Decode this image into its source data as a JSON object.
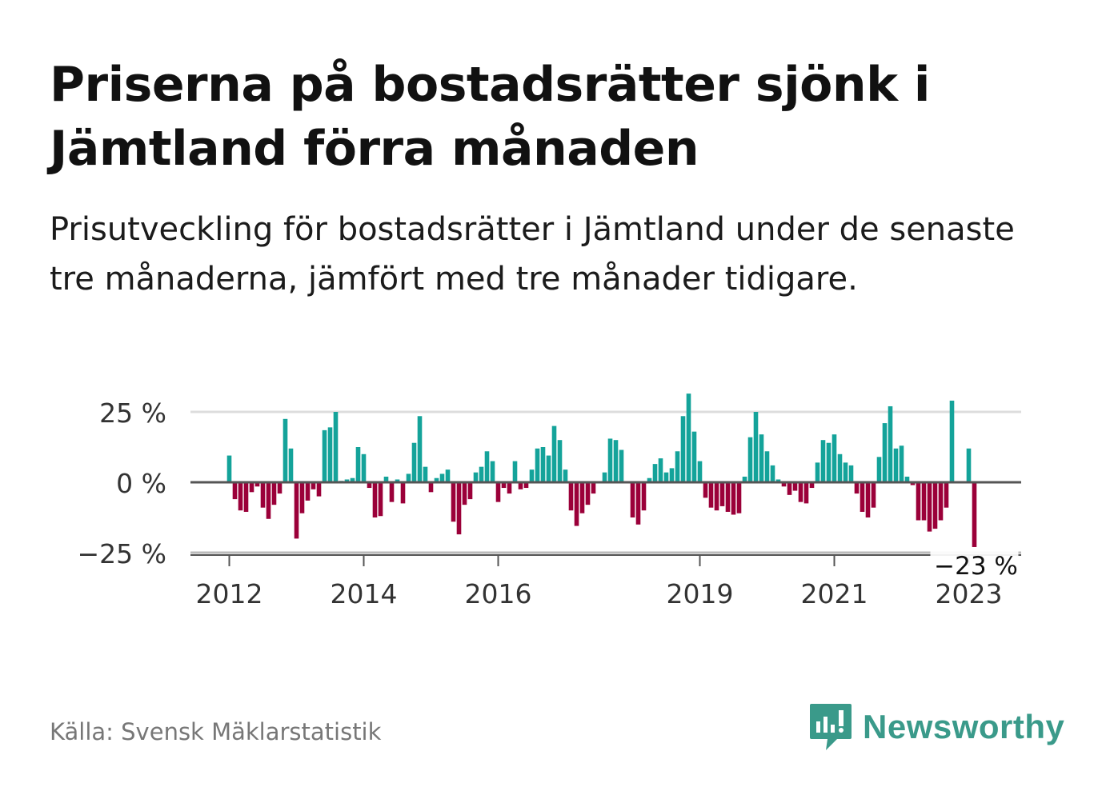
{
  "title": "Priserna på bostadsrätter sjönk i Jämtland förra månaden",
  "subtitle": "Prisutveckling för bostadsrätter i Jämtland under de senaste tre månaderna, jämfört med tre månader tidigare.",
  "source": "Källa: Svensk Mäklarstatistik",
  "logo_text": "Newsworthy",
  "colors": {
    "positive": "#14a39a",
    "negative": "#9b0039",
    "axis": "#555555",
    "grid": "#dddddd",
    "brand": "#3a9a8a"
  },
  "chart_data": {
    "type": "bar",
    "title": "",
    "xlabel": "",
    "ylabel": "",
    "ylim": [
      -25,
      33
    ],
    "y_ticks": [
      {
        "value": 25,
        "label": "25 %"
      },
      {
        "value": 0,
        "label": "0 %"
      },
      {
        "value": -25,
        "label": "−25 %"
      }
    ],
    "x_ticks": [
      {
        "date": "2012-01",
        "label": "2012"
      },
      {
        "date": "2014-01",
        "label": "2014"
      },
      {
        "date": "2016-01",
        "label": "2016"
      },
      {
        "date": "2019-01",
        "label": "2019"
      },
      {
        "date": "2021-01",
        "label": "2021"
      },
      {
        "date": "2023-01",
        "label": "2023"
      }
    ],
    "start_month": "2012-01",
    "units": "%",
    "grid": true,
    "annotation": {
      "date": "2023-02",
      "label": "−23 %"
    },
    "values": [
      9.5,
      -6,
      -10,
      -10.5,
      -3.5,
      -1.5,
      -9,
      -13,
      -8,
      -4,
      22.5,
      12,
      -20,
      -11,
      -6.5,
      -2.5,
      -5,
      18.5,
      19.5,
      25,
      0.5,
      1,
      1.5,
      12.5,
      10,
      -2,
      -12.5,
      -12,
      2,
      -7,
      1,
      -7.5,
      3,
      14,
      23.5,
      5.5,
      -3.5,
      1.5,
      3,
      4.5,
      -14,
      -18.5,
      -8,
      -6,
      3.5,
      5.5,
      11,
      7.5,
      -7,
      -2,
      -4,
      7.5,
      -2.5,
      -2,
      4.5,
      12,
      12.5,
      9.5,
      20,
      15,
      4.5,
      -10,
      -15.5,
      -11,
      -8,
      -4,
      0,
      3.5,
      15.5,
      15,
      11.5,
      0,
      -12.5,
      -15,
      -10,
      1.5,
      6.5,
      8.5,
      3.5,
      5,
      11,
      23.5,
      31.5,
      18,
      7.5,
      -5.5,
      -9,
      -10,
      -8.5,
      -10.5,
      -11.5,
      -11,
      2,
      16,
      25,
      17,
      11,
      6,
      1,
      -1.5,
      -4.5,
      -3,
      -7,
      -7.5,
      -2,
      7,
      15,
      14,
      17,
      10,
      7,
      6,
      -4,
      -10.5,
      -12.5,
      -9,
      9,
      21,
      27,
      12,
      13,
      2,
      -1,
      -13.5,
      -13.5,
      -17.5,
      -16.5,
      -13.5,
      -9,
      29,
      0,
      0,
      12,
      -23
    ]
  }
}
